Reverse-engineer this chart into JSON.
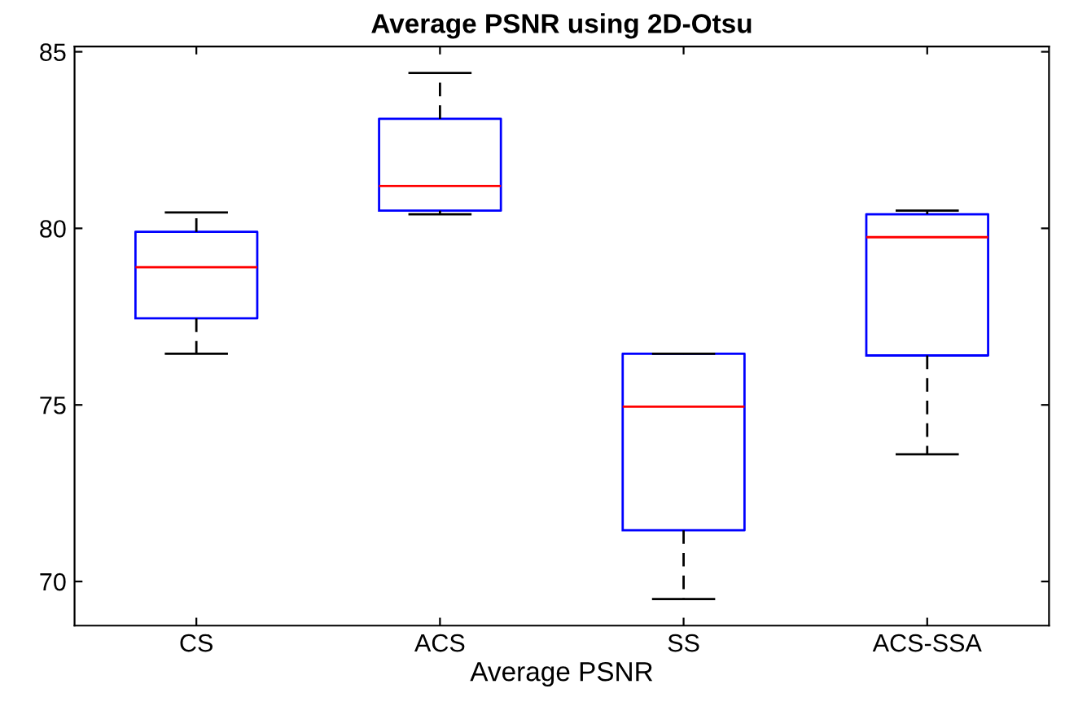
{
  "chart_data": {
    "type": "box",
    "title": "Average PSNR using 2D-Otsu",
    "xlabel": "Average PSNR",
    "categories": [
      "CS",
      "ACS",
      "SS",
      "ACS-SSA"
    ],
    "boxes": [
      {
        "low": 76.45,
        "q1": 77.45,
        "median": 78.9,
        "q3": 79.9,
        "high": 80.45
      },
      {
        "low": 80.4,
        "q1": 80.5,
        "median": 81.2,
        "q3": 83.1,
        "high": 84.4
      },
      {
        "low": 69.5,
        "q1": 71.45,
        "median": 74.95,
        "q3": 76.45,
        "high": 76.45
      },
      {
        "low": 73.6,
        "q1": 76.4,
        "median": 79.75,
        "q3": 80.4,
        "high": 80.5
      }
    ],
    "color": "#0000ff",
    "ylim": [
      68.75,
      85.15
    ],
    "yticks": [
      70,
      75,
      80,
      85
    ],
    "grid": false,
    "legend": false
  }
}
